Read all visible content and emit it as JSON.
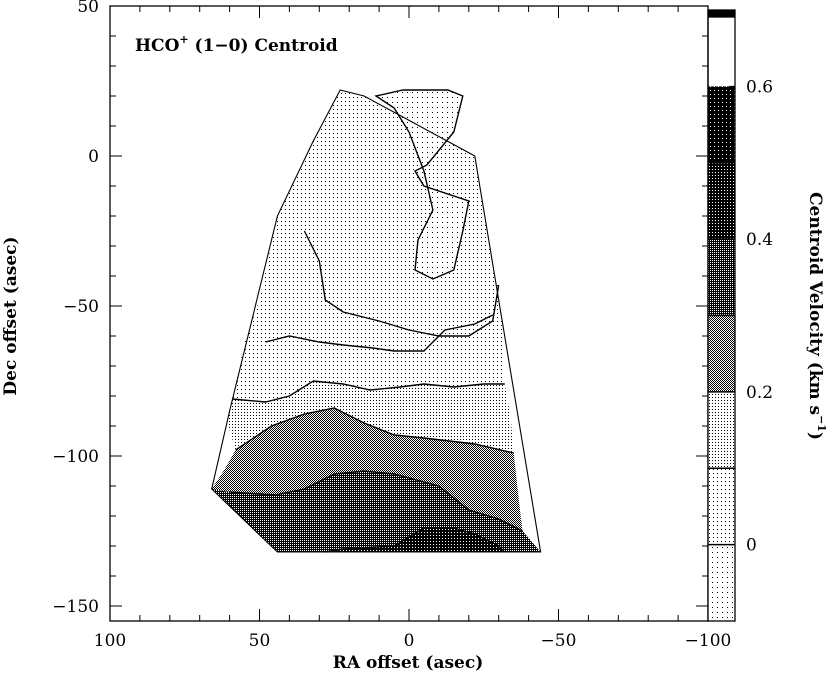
{
  "chart_data": {
    "type": "heatmap",
    "title": "HCO",
    "title_sup": "+",
    "title_suffix": " (1−0) Centroid",
    "xlabel": "RA offset (asec)",
    "ylabel": "Dec offset (asec)",
    "colorbar_label": "Centroid Velocity (km s",
    "colorbar_label_sup": "−1",
    "colorbar_label_close": ")",
    "xlim": [
      100,
      -100
    ],
    "ylim": [
      -155,
      50
    ],
    "x_ticks": [
      {
        "value": 100,
        "label": "100"
      },
      {
        "value": 50,
        "label": "50"
      },
      {
        "value": 0,
        "label": "0"
      },
      {
        "value": -50,
        "label": "−50"
      },
      {
        "value": -100,
        "label": "−100"
      }
    ],
    "y_ticks": [
      {
        "value": 50,
        "label": "50"
      },
      {
        "value": 0,
        "label": "0"
      },
      {
        "value": -50,
        "label": "−50"
      },
      {
        "value": -100,
        "label": "−100"
      },
      {
        "value": -150,
        "label": "−150"
      }
    ],
    "colorbar": {
      "vmin": -0.1,
      "vmax": 0.7,
      "ticks": [
        {
          "value": 0,
          "label": "0"
        },
        {
          "value": 0.2,
          "label": "0.2"
        },
        {
          "value": 0.4,
          "label": "0.4"
        },
        {
          "value": 0.6,
          "label": "0.6"
        }
      ],
      "contour_levels": [
        0,
        0.1,
        0.2,
        0.3,
        0.4,
        0.5
      ]
    },
    "map_outline": [
      [
        23,
        22
      ],
      [
        15,
        20
      ],
      [
        -22,
        0
      ],
      [
        -29,
        -42
      ],
      [
        -44,
        -132
      ],
      [
        44,
        -132
      ],
      [
        66,
        -111
      ],
      [
        60,
        -85
      ],
      [
        44,
        -20
      ],
      [
        32,
        5
      ]
    ],
    "bands": [
      {
        "range": [
          0.0,
          0.1
        ],
        "shade": 1,
        "polygon": [
          [
            23,
            22
          ],
          [
            15,
            20
          ],
          [
            -22,
            0
          ],
          [
            -29,
            -42
          ],
          [
            -30,
            -43
          ],
          [
            -31,
            -55
          ],
          [
            -32,
            -76
          ],
          [
            -25,
            -76
          ],
          [
            -15,
            -77
          ],
          [
            -5,
            -76
          ],
          [
            3,
            -77
          ],
          [
            13,
            -78
          ],
          [
            22,
            -76
          ],
          [
            32,
            -75
          ],
          [
            40,
            -80
          ],
          [
            48,
            -82
          ],
          [
            59,
            -81
          ],
          [
            55,
            -62
          ],
          [
            50,
            -48
          ],
          [
            44,
            -20
          ],
          [
            32,
            5
          ]
        ]
      },
      {
        "range": [
          0.1,
          0.2
        ],
        "shade": 2,
        "polygon": [
          [
            59,
            -81
          ],
          [
            48,
            -82
          ],
          [
            40,
            -80
          ],
          [
            32,
            -75
          ],
          [
            22,
            -76
          ],
          [
            13,
            -78
          ],
          [
            3,
            -77
          ],
          [
            -5,
            -76
          ],
          [
            -15,
            -77
          ],
          [
            -25,
            -76
          ],
          [
            -32,
            -76
          ],
          [
            -34,
            -87
          ],
          [
            -35,
            -99
          ],
          [
            -22,
            -96
          ],
          [
            -5,
            -94
          ],
          [
            5,
            -93
          ],
          [
            15,
            -89
          ],
          [
            25,
            -84
          ],
          [
            35,
            -86
          ],
          [
            46,
            -90
          ],
          [
            58,
            -98
          ],
          [
            61,
            -88
          ]
        ]
      },
      {
        "range": [
          0.2,
          0.3
        ],
        "shade": 3,
        "polygon": [
          [
            58,
            -98
          ],
          [
            46,
            -90
          ],
          [
            35,
            -86
          ],
          [
            25,
            -84
          ],
          [
            15,
            -89
          ],
          [
            5,
            -93
          ],
          [
            -5,
            -94
          ],
          [
            -22,
            -96
          ],
          [
            -35,
            -99
          ],
          [
            -37,
            -117
          ],
          [
            -38,
            -125
          ],
          [
            -30,
            -121
          ],
          [
            -20,
            -118
          ],
          [
            -10,
            -110
          ],
          [
            5,
            -106
          ],
          [
            15,
            -105
          ],
          [
            25,
            -106
          ],
          [
            35,
            -111
          ],
          [
            45,
            -113
          ],
          [
            60,
            -112
          ],
          [
            66,
            -111
          ],
          [
            62,
            -105
          ]
        ]
      },
      {
        "range": [
          0.3,
          0.4
        ],
        "shade": 4,
        "polygon": [
          [
            60,
            -112
          ],
          [
            45,
            -113
          ],
          [
            35,
            -111
          ],
          [
            25,
            -106
          ],
          [
            15,
            -105
          ],
          [
            5,
            -106
          ],
          [
            -10,
            -110
          ],
          [
            -20,
            -118
          ],
          [
            -30,
            -121
          ],
          [
            -38,
            -125
          ],
          [
            -44,
            -132
          ],
          [
            -32,
            -132
          ],
          [
            -30,
            -130
          ],
          [
            -22,
            -126
          ],
          [
            -15,
            -124
          ],
          [
            -5,
            -124
          ],
          [
            5,
            -130
          ],
          [
            22,
            -131
          ],
          [
            28,
            -132
          ],
          [
            44,
            -132
          ],
          [
            66,
            -111
          ]
        ]
      },
      {
        "range": [
          0.4,
          0.5
        ],
        "shade": 5,
        "polygon": [
          [
            28,
            -132
          ],
          [
            22,
            -131
          ],
          [
            5,
            -130
          ],
          [
            -5,
            -124
          ],
          [
            -15,
            -124
          ],
          [
            -22,
            -126
          ],
          [
            -30,
            -130
          ],
          [
            -32,
            -132
          ],
          [
            -10,
            -132
          ]
        ]
      }
    ],
    "contours": [
      {
        "level": 0.0,
        "points": [
          [
            35,
            -25
          ],
          [
            30,
            -35
          ],
          [
            28,
            -48
          ],
          [
            22,
            -52
          ],
          [
            10,
            -55
          ],
          [
            0,
            -58
          ],
          [
            -10,
            -60
          ],
          [
            -20,
            -60
          ],
          [
            -28,
            -55
          ],
          [
            -30,
            -43
          ]
        ]
      },
      {
        "level": 0.0,
        "points": [
          [
            48,
            -62
          ],
          [
            40,
            -60
          ],
          [
            30,
            -62
          ],
          [
            22,
            -63
          ],
          [
            12,
            -64
          ],
          [
            5,
            -65
          ],
          [
            -5,
            -65
          ],
          [
            -12,
            -58
          ],
          [
            -22,
            -56
          ],
          [
            -28,
            -53
          ]
        ]
      },
      {
        "level": 0.1,
        "points": [
          [
            59,
            -81
          ],
          [
            48,
            -82
          ],
          [
            40,
            -80
          ],
          [
            32,
            -75
          ],
          [
            22,
            -76
          ],
          [
            13,
            -78
          ],
          [
            3,
            -77
          ],
          [
            -5,
            -76
          ],
          [
            -15,
            -77
          ],
          [
            -25,
            -76
          ],
          [
            -32,
            -76
          ]
        ]
      },
      {
        "level": 0.2,
        "points": [
          [
            58,
            -98
          ],
          [
            46,
            -90
          ],
          [
            35,
            -86
          ],
          [
            25,
            -84
          ],
          [
            15,
            -89
          ],
          [
            5,
            -93
          ],
          [
            -5,
            -94
          ],
          [
            -22,
            -96
          ],
          [
            -35,
            -99
          ]
        ]
      },
      {
        "level": 0.3,
        "points": [
          [
            60,
            -112
          ],
          [
            45,
            -113
          ],
          [
            35,
            -111
          ],
          [
            25,
            -106
          ],
          [
            15,
            -105
          ],
          [
            5,
            -106
          ],
          [
            -10,
            -110
          ],
          [
            -20,
            -118
          ],
          [
            -30,
            -121
          ],
          [
            -38,
            -125
          ]
        ]
      },
      {
        "level": 0.4,
        "points": [
          [
            28,
            -132
          ],
          [
            22,
            -131
          ],
          [
            5,
            -130
          ],
          [
            -5,
            -124
          ],
          [
            -15,
            -124
          ],
          [
            -22,
            -126
          ],
          [
            -30,
            -130
          ],
          [
            -32,
            -132
          ]
        ]
      }
    ],
    "island": {
      "level": 0.0,
      "points": [
        [
          11,
          20
        ],
        [
          5,
          16
        ],
        [
          0,
          8
        ],
        [
          -5,
          -5
        ],
        [
          -8,
          -18
        ],
        [
          -3,
          -28
        ],
        [
          -2,
          -38
        ],
        [
          -8,
          -41
        ],
        [
          -15,
          -38
        ],
        [
          -18,
          -25
        ],
        [
          -20,
          -15
        ],
        [
          -5,
          -10
        ],
        [
          -2,
          -5
        ],
        [
          -6,
          -3
        ],
        [
          -15,
          8
        ],
        [
          -18,
          20
        ],
        [
          -13,
          22
        ],
        [
          -5,
          22
        ],
        [
          2,
          22
        ]
      ]
    }
  }
}
